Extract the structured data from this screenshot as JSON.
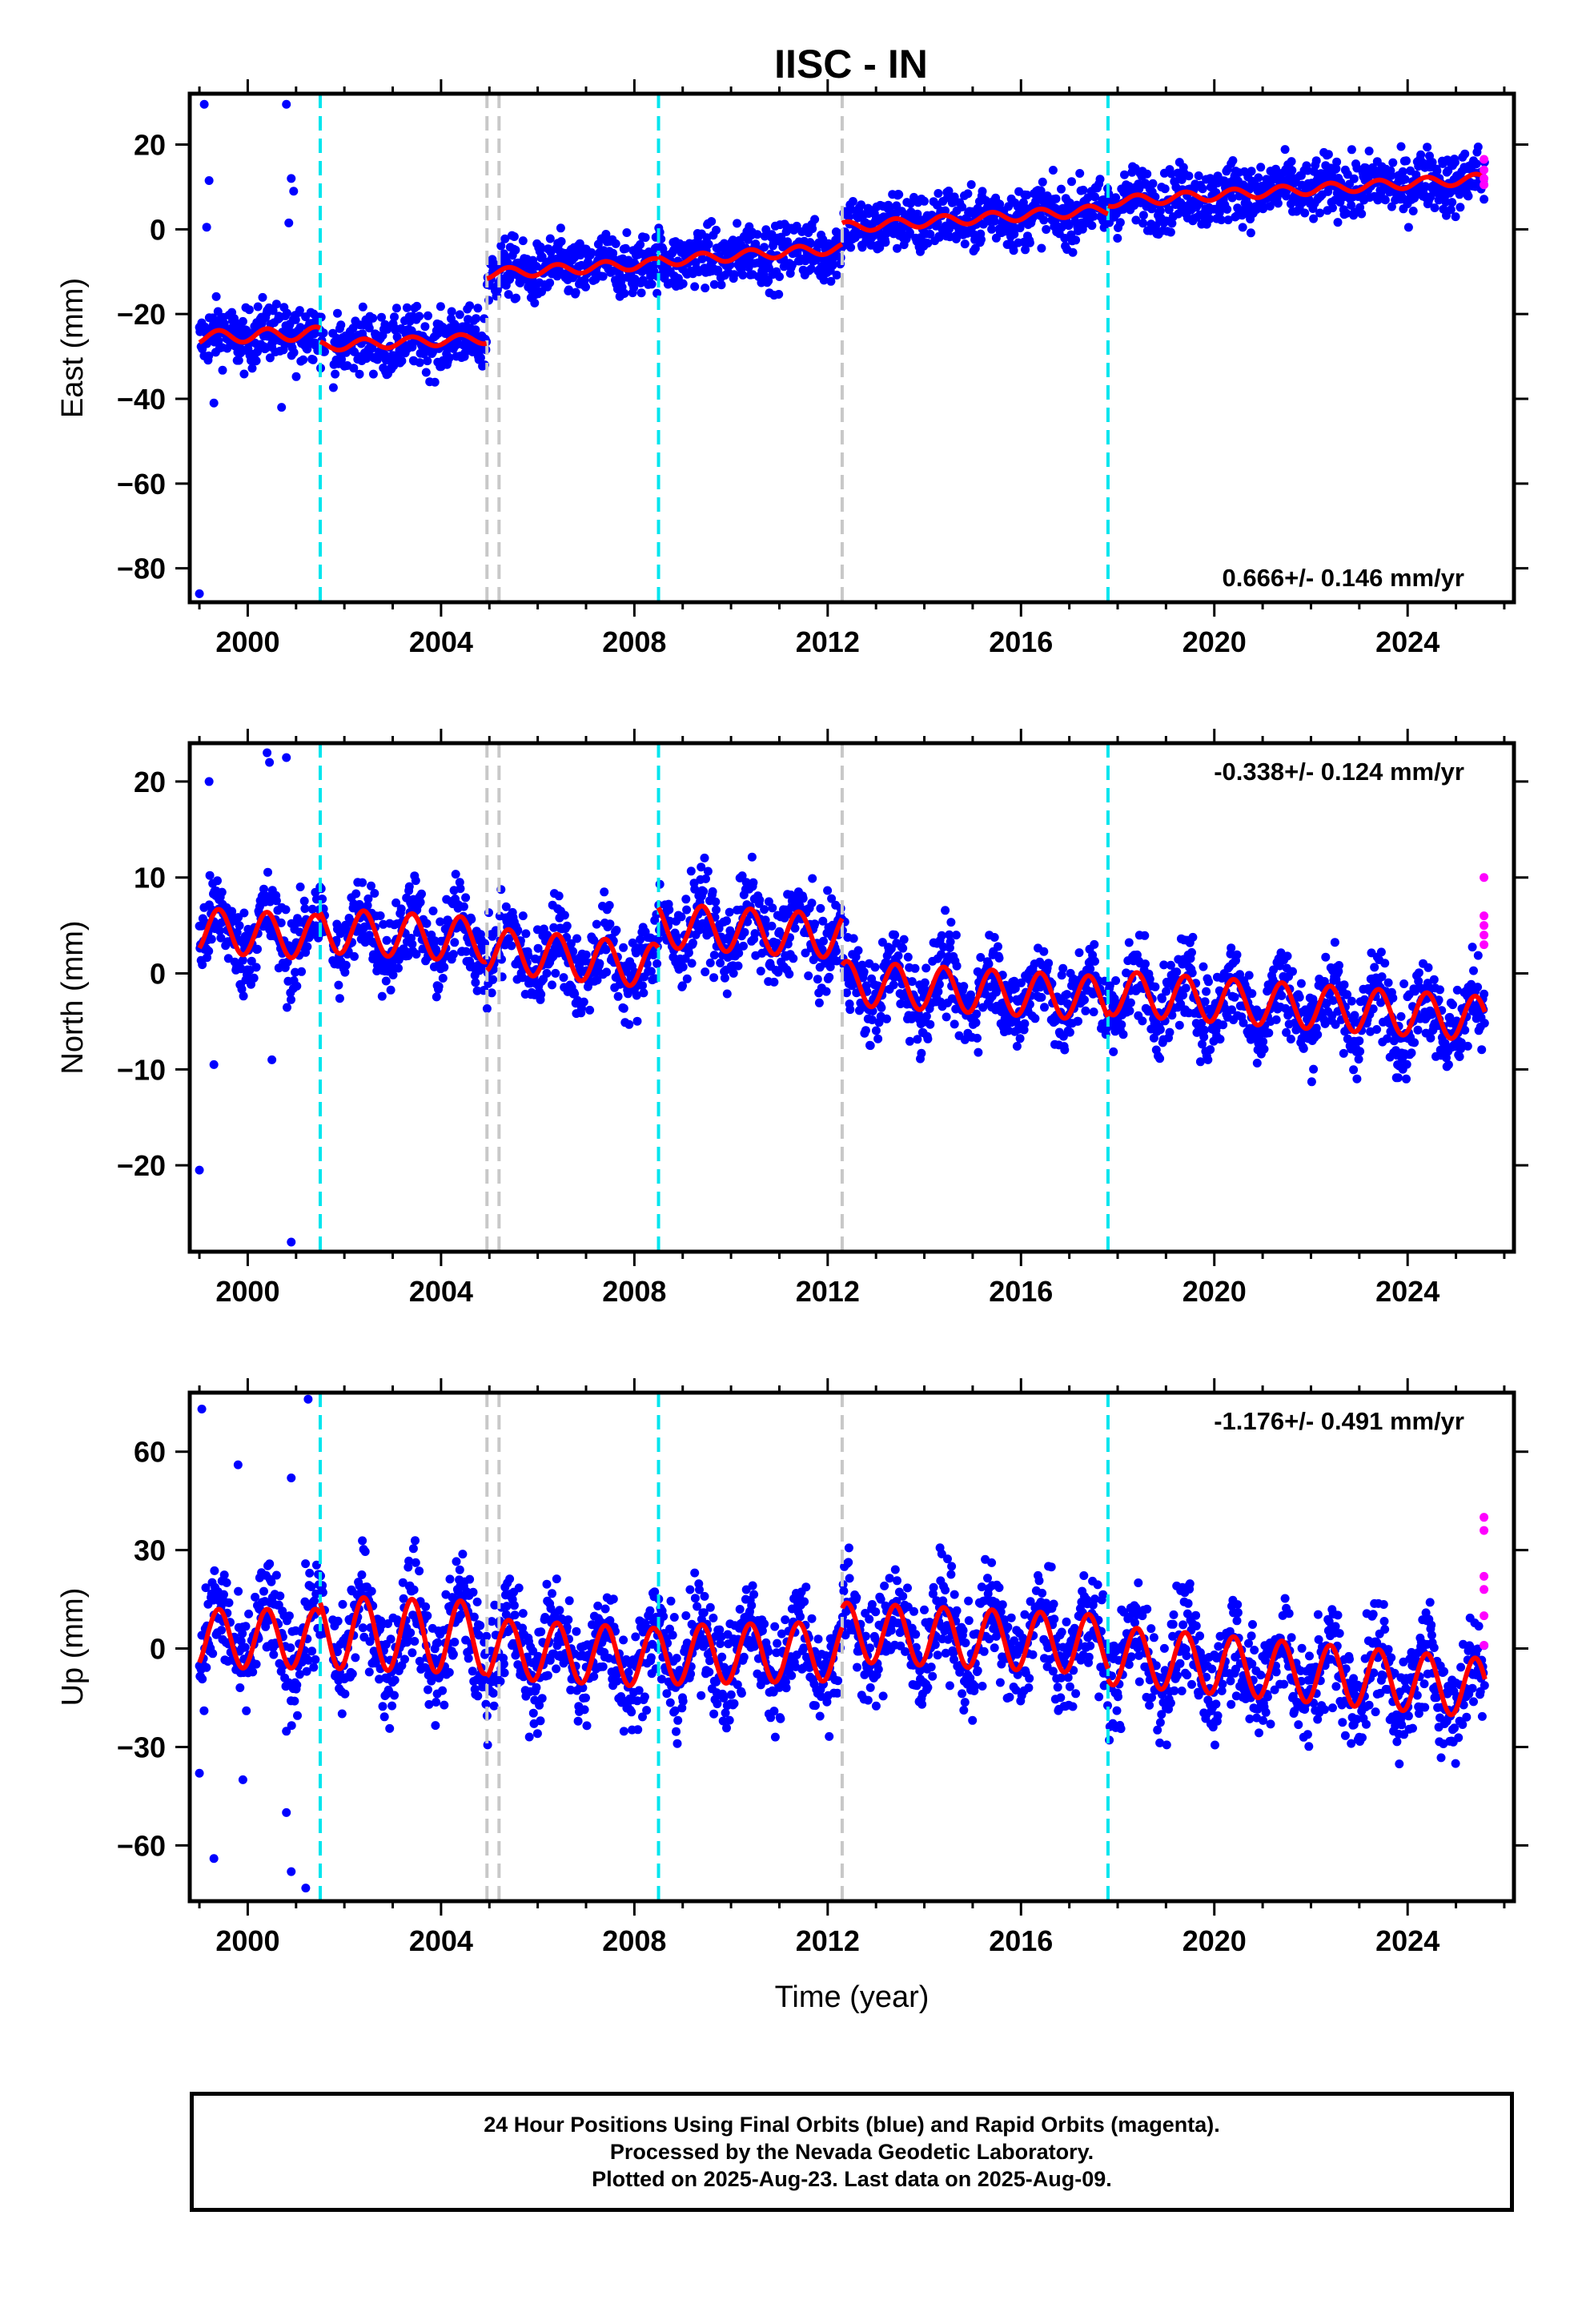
{
  "title": "IISC - IN",
  "colors": {
    "final": "#0000ff",
    "rapid": "#ff00ff",
    "model": "#ff0000",
    "offset_equipment": "#00e5ee",
    "offset_earthquake": "#c8c8c8"
  },
  "footer": {
    "line1": "24 Hour Positions Using Final Orbits (blue) and Rapid Orbits (magenta).",
    "line2": "Processed by the Nevada Geodetic Laboratory.",
    "line3": "Plotted on 2025-Aug-23. Last data on 2025-Aug-09."
  },
  "chart_data": [
    {
      "type": "scatter",
      "panel": "east",
      "ylabel": "East (mm)",
      "xlabel": "",
      "xlim": [
        1998.8,
        2026.2
      ],
      "ylim": [
        -88,
        32
      ],
      "xticks": [
        2000,
        2004,
        2008,
        2012,
        2016,
        2020,
        2024
      ],
      "yticks": [
        20,
        0,
        -20,
        -40,
        -60,
        -80
      ],
      "ytick_labels": [
        "20",
        "0",
        "−20",
        "−40",
        "−60",
        "−80"
      ],
      "xtick_labels": [
        "2000",
        "2004",
        "2008",
        "2012",
        "2016",
        "2020",
        "2024"
      ],
      "rate_label": "0.666+/- 0.146 mm/yr",
      "rate_position": "bottom-right",
      "equipment_offsets": [
        2001.5,
        2008.5,
        2017.8
      ],
      "earthquake_offsets": [
        2004.95,
        2005.2,
        2012.3
      ],
      "model_segments": [
        {
          "start": 1999.0,
          "end": 2001.5,
          "level": -25.5,
          "slope": 0.4,
          "amp": 1.5
        },
        {
          "start": 2001.5,
          "end": 2004.95,
          "level": -27.5,
          "slope": 0.5,
          "amp": 1.2
        },
        {
          "start": 2004.95,
          "end": 2008.5,
          "level": -10.5,
          "slope": 0.7,
          "amp": 1.2
        },
        {
          "start": 2008.5,
          "end": 2012.3,
          "level": -7.5,
          "slope": 0.8,
          "amp": 1.2
        },
        {
          "start": 2012.3,
          "end": 2017.8,
          "level": 0.5,
          "slope": 0.75,
          "amp": 1.2
        },
        {
          "start": 2017.8,
          "end": 2025.6,
          "level": 6.5,
          "slope": 0.7,
          "amp": 1.2
        }
      ],
      "scatter_spread": 3.5,
      "outliers": [
        [
          1999.1,
          29.5
        ],
        [
          1999.2,
          11.5
        ],
        [
          1999.15,
          0.5
        ],
        [
          2000.8,
          29.5
        ],
        [
          2000.9,
          12
        ],
        [
          2000.95,
          9
        ],
        [
          2000.85,
          1.5
        ],
        [
          1999.0,
          -86
        ],
        [
          2000.7,
          -42
        ],
        [
          1999.3,
          -41
        ]
      ],
      "rapid_points": [
        [
          2025.58,
          16.5
        ],
        [
          2025.58,
          14
        ],
        [
          2025.58,
          12
        ],
        [
          2025.58,
          10.5
        ]
      ]
    },
    {
      "type": "scatter",
      "panel": "north",
      "ylabel": "North (mm)",
      "xlabel": "",
      "xlim": [
        1998.8,
        2026.2
      ],
      "ylim": [
        -29,
        24
      ],
      "xticks": [
        2000,
        2004,
        2008,
        2012,
        2016,
        2020,
        2024
      ],
      "yticks": [
        20,
        10,
        0,
        -10,
        -20
      ],
      "ytick_labels": [
        "20",
        "10",
        "0",
        "−10",
        "−20"
      ],
      "xtick_labels": [
        "2000",
        "2004",
        "2008",
        "2012",
        "2016",
        "2020",
        "2024"
      ],
      "rate_label": "-0.338+/- 0.124 mm/yr",
      "rate_position": "top-right",
      "equipment_offsets": [
        2001.5,
        2008.5,
        2017.8
      ],
      "earthquake_offsets": [
        2004.95,
        2005.2,
        2012.3
      ],
      "model_segments": [
        {
          "start": 1999.0,
          "end": 2001.5,
          "level": 4.5,
          "slope": -0.3,
          "amp": 2.3
        },
        {
          "start": 2001.5,
          "end": 2004.95,
          "level": 4.5,
          "slope": -0.3,
          "amp": 2.3
        },
        {
          "start": 2004.95,
          "end": 2008.5,
          "level": 2.5,
          "slope": -0.5,
          "amp": 2.3
        },
        {
          "start": 2008.5,
          "end": 2012.3,
          "level": 5.0,
          "slope": -0.3,
          "amp": 2.3
        },
        {
          "start": 2012.3,
          "end": 2017.8,
          "level": -1.0,
          "slope": -0.3,
          "amp": 2.3
        },
        {
          "start": 2017.8,
          "end": 2025.6,
          "level": -2.0,
          "slope": -0.35,
          "amp": 2.3
        }
      ],
      "scatter_spread": 2.2,
      "outliers": [
        [
          1999.0,
          -20.5
        ],
        [
          1999.3,
          -9.5
        ],
        [
          2000.5,
          -9
        ],
        [
          2000.8,
          22.5
        ],
        [
          2000.4,
          23
        ],
        [
          2000.45,
          22
        ],
        [
          1999.2,
          20
        ],
        [
          2000.9,
          -28
        ]
      ],
      "rapid_points": [
        [
          2025.58,
          10
        ],
        [
          2025.58,
          6
        ],
        [
          2025.58,
          5
        ],
        [
          2025.58,
          4
        ],
        [
          2025.58,
          3
        ]
      ]
    },
    {
      "type": "scatter",
      "panel": "up",
      "ylabel": "Up (mm)",
      "xlabel": "Time (year)",
      "xlim": [
        1998.8,
        2026.2
      ],
      "ylim": [
        -77,
        78
      ],
      "xticks": [
        2000,
        2004,
        2008,
        2012,
        2016,
        2020,
        2024
      ],
      "yticks": [
        60,
        30,
        0,
        -30,
        -60
      ],
      "ytick_labels": [
        "60",
        "30",
        "0",
        "−30",
        "−60"
      ],
      "xtick_labels": [
        "2000",
        "2004",
        "2008",
        "2012",
        "2016",
        "2020",
        "2024"
      ],
      "rate_label": "-1.176+/- 0.491 mm/yr",
      "rate_position": "top-right",
      "equipment_offsets": [
        2001.5,
        2008.5,
        2017.8
      ],
      "earthquake_offsets": [
        2004.95,
        2005.2,
        2012.3
      ],
      "model_segments": [
        {
          "start": 1999.0,
          "end": 2001.5,
          "level": 3.0,
          "slope": 0.0,
          "amp": 9
        },
        {
          "start": 2001.5,
          "end": 2004.95,
          "level": 5.0,
          "slope": -0.5,
          "amp": 11
        },
        {
          "start": 2004.95,
          "end": 2008.5,
          "level": 0.0,
          "slope": -0.8,
          "amp": 9
        },
        {
          "start": 2008.5,
          "end": 2012.3,
          "level": -2.0,
          "slope": 0.3,
          "amp": 9
        },
        {
          "start": 2012.3,
          "end": 2017.8,
          "level": 5.0,
          "slope": -0.7,
          "amp": 9
        },
        {
          "start": 2017.8,
          "end": 2025.6,
          "level": -2.0,
          "slope": -1.3,
          "amp": 9
        }
      ],
      "scatter_spread": 8,
      "outliers": [
        [
          1999.05,
          73
        ],
        [
          2001.25,
          76
        ],
        [
          1999.3,
          -64
        ],
        [
          2000.9,
          -68
        ],
        [
          2001.2,
          -73
        ],
        [
          1999.8,
          56
        ],
        [
          2000.9,
          52
        ],
        [
          1999.0,
          -38
        ],
        [
          2000.8,
          -50
        ],
        [
          1999.9,
          -40
        ]
      ],
      "rapid_points": [
        [
          2025.58,
          40
        ],
        [
          2025.58,
          36
        ],
        [
          2025.58,
          22
        ],
        [
          2025.58,
          18
        ],
        [
          2025.58,
          10
        ],
        [
          2025.58,
          1
        ]
      ]
    }
  ]
}
